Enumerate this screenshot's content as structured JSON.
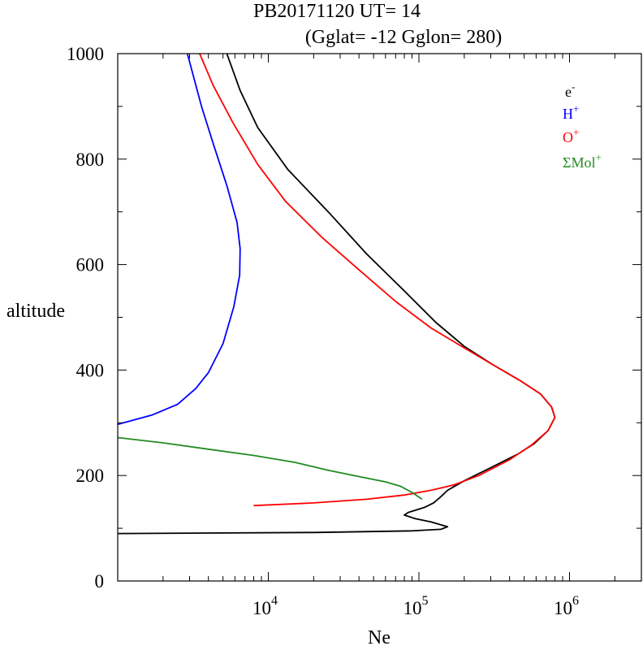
{
  "chart_data": {
    "type": "line",
    "title": "PB20171120   UT=  14",
    "subtitle": "(Gglat= -12   Gglon=  280)",
    "xlabel": "Ne",
    "ylabel": "altitude",
    "x_scale": "log",
    "xlim": [
      1000,
      3000000
    ],
    "ylim": [
      0,
      1000
    ],
    "grid": false,
    "legend_position": "top-right",
    "x_major_ticks": [
      {
        "base": "10",
        "exp": "4",
        "value": 10000
      },
      {
        "base": "10",
        "exp": "5",
        "value": 100000
      },
      {
        "base": "10",
        "exp": "6",
        "value": 1000000
      }
    ],
    "y_ticks": [
      {
        "label": "0",
        "value": 0
      },
      {
        "label": "200",
        "value": 200
      },
      {
        "label": "400",
        "value": 400
      },
      {
        "label": "600",
        "value": 600
      },
      {
        "label": "800",
        "value": 800
      },
      {
        "label": "1000",
        "value": 1000
      }
    ],
    "series": [
      {
        "key": "electron",
        "legend_base": "e",
        "legend_sup": "-",
        "color": "#000000",
        "points": [
          [
            1000,
            90
          ],
          [
            20000,
            92
          ],
          [
            90000,
            95
          ],
          [
            140000,
            98
          ],
          [
            155000,
            103
          ],
          [
            120000,
            112
          ],
          [
            95000,
            118
          ],
          [
            80000,
            125
          ],
          [
            85000,
            130
          ],
          [
            110000,
            140
          ],
          [
            125000,
            148
          ],
          [
            140000,
            160
          ],
          [
            155000,
            172
          ],
          [
            200000,
            190
          ],
          [
            300000,
            215
          ],
          [
            450000,
            240
          ],
          [
            580000,
            260
          ],
          [
            720000,
            285
          ],
          [
            800000,
            310
          ],
          [
            760000,
            330
          ],
          [
            640000,
            355
          ],
          [
            470000,
            380
          ],
          [
            310000,
            410
          ],
          [
            200000,
            445
          ],
          [
            130000,
            490
          ],
          [
            80000,
            550
          ],
          [
            45000,
            620
          ],
          [
            25000,
            700
          ],
          [
            13500,
            780
          ],
          [
            8500,
            860
          ],
          [
            6500,
            930
          ],
          [
            5300,
            1000
          ]
        ]
      },
      {
        "key": "hydrogen",
        "legend_base": "H",
        "legend_sup": "+",
        "color": "#0000ff",
        "points": [
          [
            1000,
            297
          ],
          [
            1700,
            315
          ],
          [
            2500,
            335
          ],
          [
            3300,
            365
          ],
          [
            4000,
            395
          ],
          [
            5000,
            450
          ],
          [
            5900,
            520
          ],
          [
            6450,
            580
          ],
          [
            6500,
            630
          ],
          [
            6200,
            680
          ],
          [
            5300,
            750
          ],
          [
            4300,
            830
          ],
          [
            3600,
            900
          ],
          [
            2900,
            1000
          ]
        ]
      },
      {
        "key": "oxygen",
        "legend_base": "O",
        "legend_sup": "+",
        "color": "#ff0000",
        "points": [
          [
            8000,
            143
          ],
          [
            20000,
            148
          ],
          [
            45000,
            155
          ],
          [
            80000,
            163
          ],
          [
            120000,
            172
          ],
          [
            170000,
            182
          ],
          [
            250000,
            200
          ],
          [
            400000,
            230
          ],
          [
            560000,
            258
          ],
          [
            720000,
            285
          ],
          [
            800000,
            310
          ],
          [
            760000,
            330
          ],
          [
            640000,
            355
          ],
          [
            470000,
            380
          ],
          [
            310000,
            410
          ],
          [
            200000,
            442
          ],
          [
            120000,
            480
          ],
          [
            70000,
            530
          ],
          [
            40000,
            590
          ],
          [
            23000,
            650
          ],
          [
            13000,
            720
          ],
          [
            8500,
            790
          ],
          [
            5800,
            870
          ],
          [
            4300,
            940
          ],
          [
            3500,
            1000
          ]
        ]
      },
      {
        "key": "molecular",
        "legend_base": "ΣMol",
        "legend_sup": "+",
        "color": "#228b22",
        "points": [
          [
            1000,
            272
          ],
          [
            2000,
            262
          ],
          [
            4000,
            250
          ],
          [
            8000,
            238
          ],
          [
            15000,
            225
          ],
          [
            25000,
            210
          ],
          [
            40000,
            198
          ],
          [
            60000,
            188
          ],
          [
            75000,
            180
          ],
          [
            90000,
            168
          ],
          [
            105000,
            155
          ]
        ]
      }
    ]
  }
}
